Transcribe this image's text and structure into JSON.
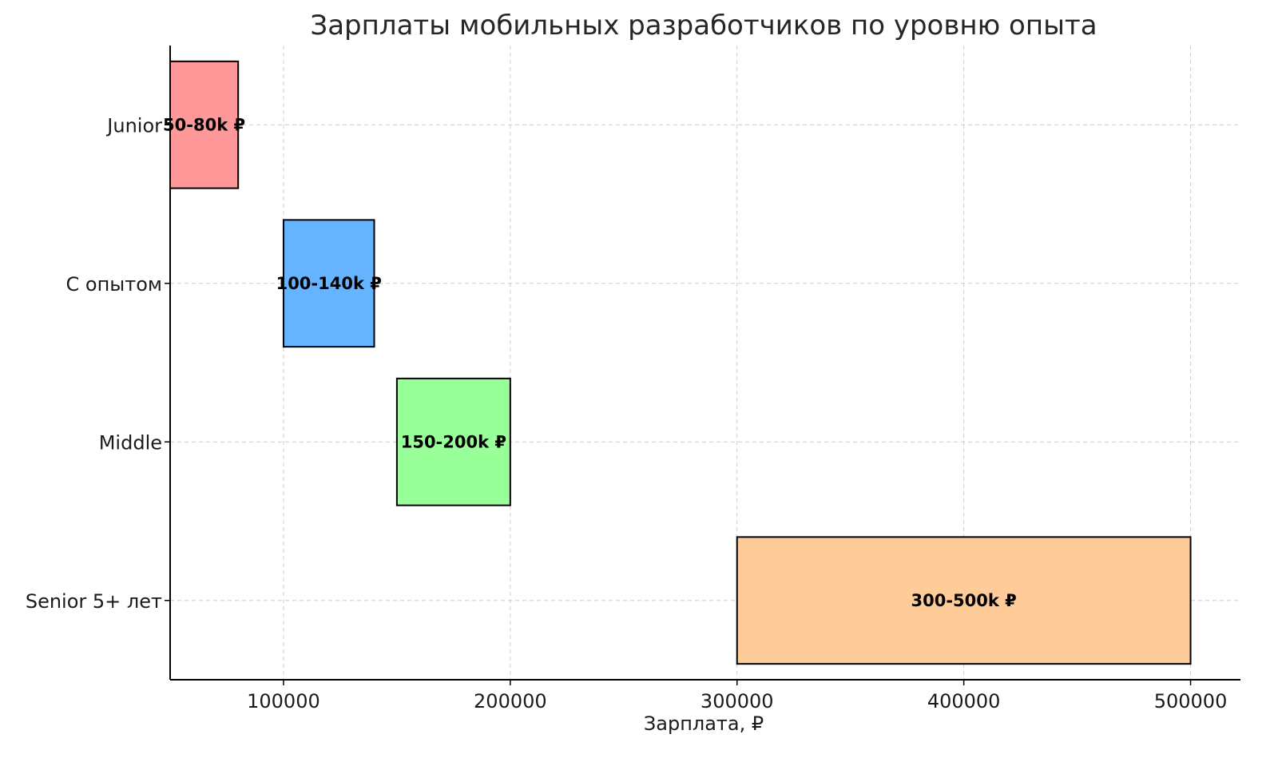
{
  "chart_data": {
    "type": "bar",
    "orientation": "horizontal",
    "title": "Зарплаты мобильных разработчиков по уровню опыта",
    "xlabel": "Зарплата, ₽",
    "ylabel": "",
    "xlim": [
      50000,
      522000
    ],
    "x_ticks": [
      100000,
      200000,
      300000,
      400000,
      500000
    ],
    "x_tick_labels": [
      "100000",
      "200000",
      "300000",
      "400000",
      "500000"
    ],
    "grid": true,
    "categories": [
      "Junior",
      "С опытом",
      "Middle",
      "Senior 5+ лет"
    ],
    "ranges": [
      {
        "category": "Junior",
        "start": 50000,
        "end": 80000,
        "label": "50-80k ₽",
        "color": "#ff9999"
      },
      {
        "category": "С опытом",
        "start": 100000,
        "end": 140000,
        "label": "100-140k ₽",
        "color": "#66b3ff"
      },
      {
        "category": "Middle",
        "start": 150000,
        "end": 200000,
        "label": "150-200k ₽",
        "color": "#99ff99"
      },
      {
        "category": "Senior 5+ лет",
        "start": 300000,
        "end": 500000,
        "label": "300-500k ₽",
        "color": "#ffcc99"
      }
    ]
  }
}
